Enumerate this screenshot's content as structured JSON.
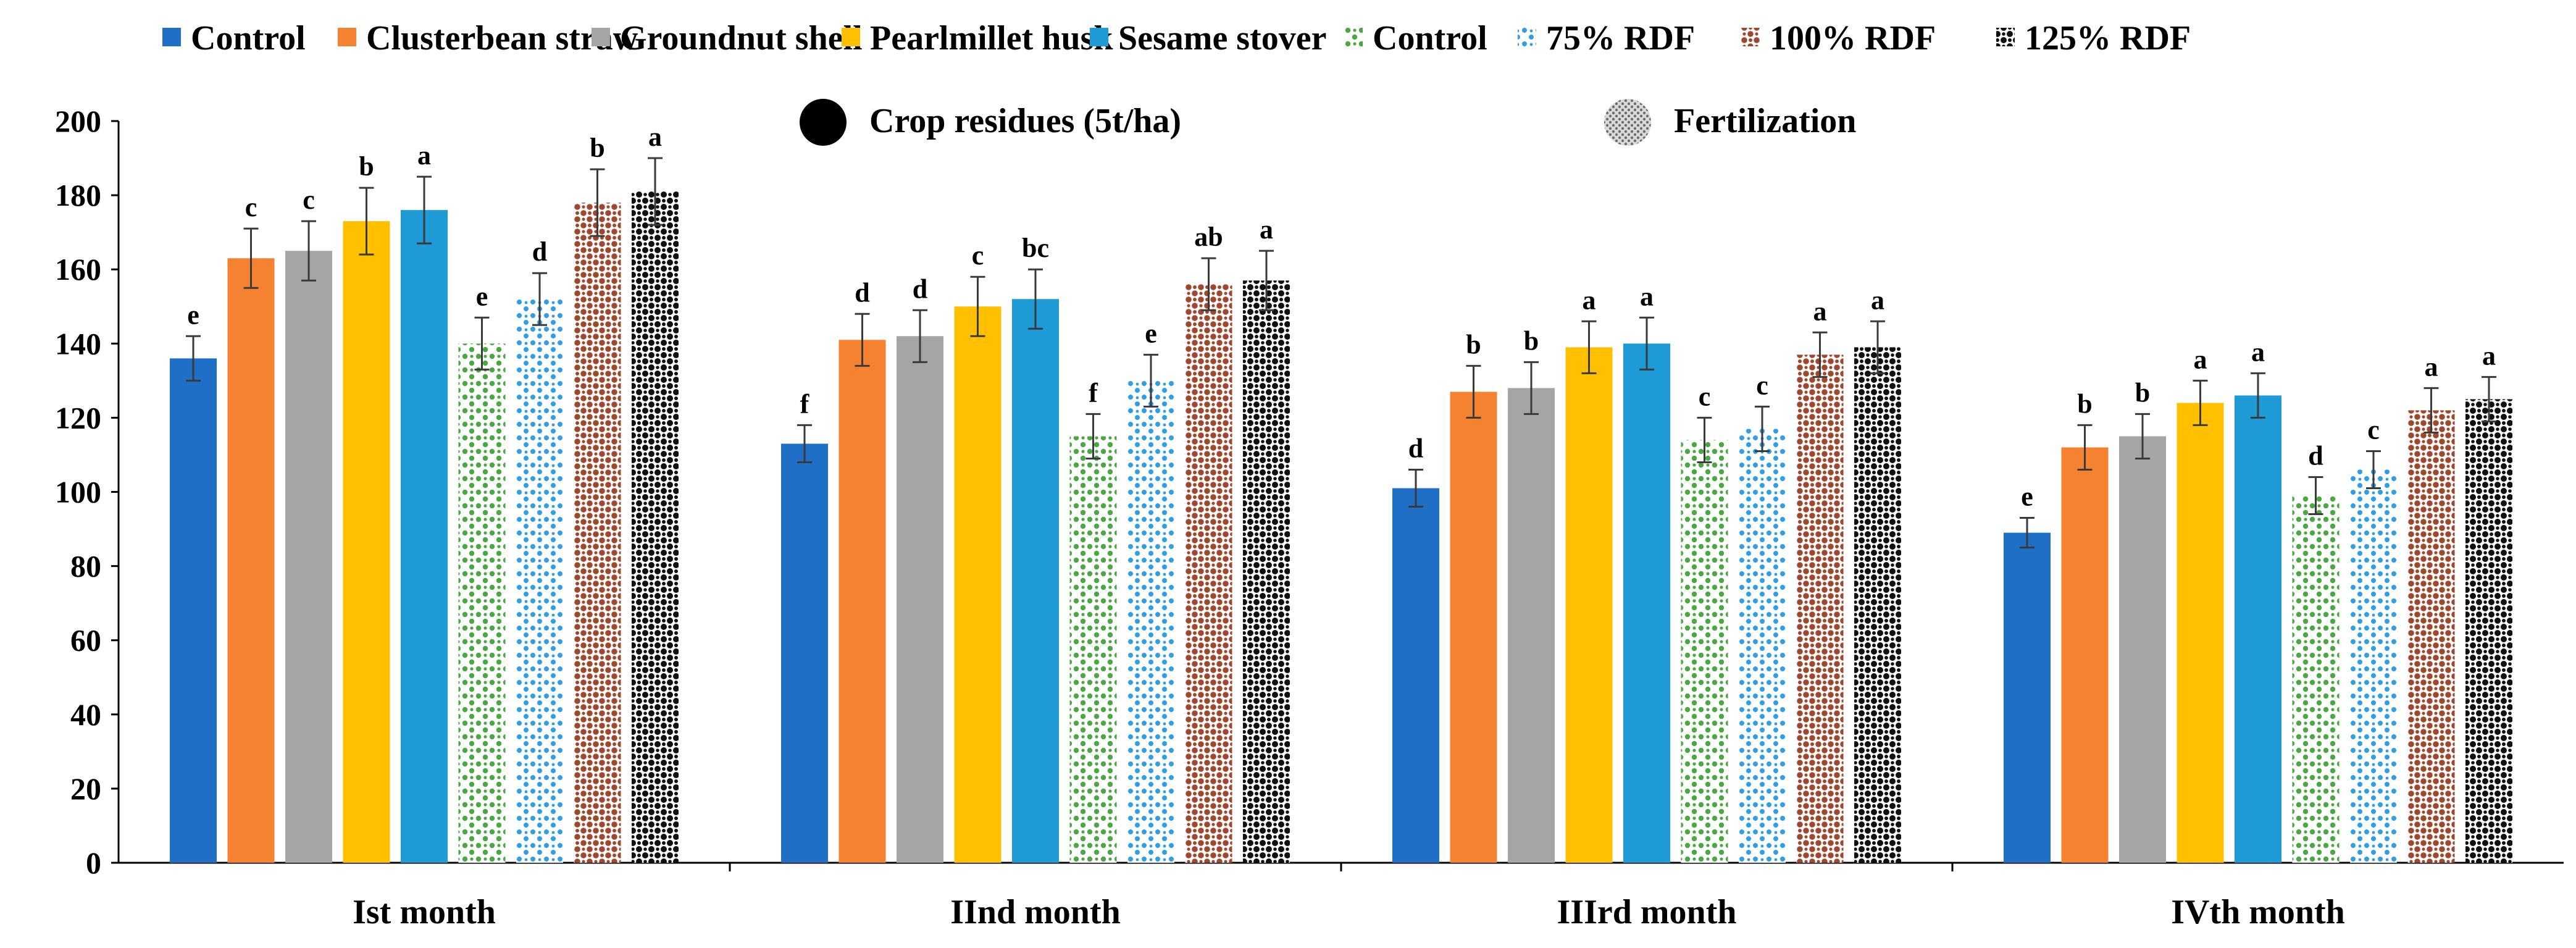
{
  "chart_data": {
    "type": "bar",
    "title": "",
    "xlabel": "",
    "ylabel": "",
    "ylim": [
      0,
      200
    ],
    "yticks": [
      0,
      20,
      40,
      60,
      80,
      100,
      120,
      140,
      160,
      180,
      200
    ],
    "categories": [
      "Ist month",
      "IInd month",
      "IIIrd month",
      "IVth month"
    ],
    "groups": [
      {
        "label": "Crop residues (5t/ha)",
        "symbol": "solid-circle"
      },
      {
        "label": "Fertilization",
        "symbol": "dotted-circle"
      }
    ],
    "series": [
      {
        "name": "Control",
        "group": "Crop residues (5t/ha)",
        "color": "#1f6fc6",
        "pattern": "solid",
        "values": [
          136,
          113,
          101,
          89
        ],
        "errors": [
          6,
          5,
          5,
          4
        ],
        "letters": [
          "e",
          "f",
          "d",
          "e"
        ]
      },
      {
        "name": "Clusterbean straw",
        "group": "Crop residues (5t/ha)",
        "color": "#f58231",
        "pattern": "solid",
        "values": [
          163,
          141,
          127,
          112
        ],
        "errors": [
          8,
          7,
          7,
          6
        ],
        "letters": [
          "c",
          "d",
          "b",
          "b"
        ]
      },
      {
        "name": "Groundnut shell",
        "group": "Crop residues (5t/ha)",
        "color": "#a5a5a5",
        "pattern": "solid",
        "values": [
          165,
          142,
          128,
          115
        ],
        "errors": [
          8,
          7,
          7,
          6
        ],
        "letters": [
          "c",
          "d",
          "b",
          "b"
        ]
      },
      {
        "name": "Pearlmillet husk",
        "group": "Crop residues (5t/ha)",
        "color": "#ffc000",
        "pattern": "solid",
        "values": [
          173,
          150,
          139,
          124
        ],
        "errors": [
          9,
          8,
          7,
          6
        ],
        "letters": [
          "b",
          "c",
          "a",
          "a"
        ]
      },
      {
        "name": "Sesame stover",
        "group": "Crop residues (5t/ha)",
        "color": "#1e9ad6",
        "pattern": "solid",
        "values": [
          176,
          152,
          140,
          126
        ],
        "errors": [
          9,
          8,
          7,
          6
        ],
        "letters": [
          "a",
          "bc",
          "a",
          "a"
        ]
      },
      {
        "name": "Control",
        "group": "Fertilization",
        "color": "#4aa843",
        "pattern": "dots",
        "values": [
          140,
          115,
          114,
          99
        ],
        "errors": [
          7,
          6,
          6,
          5
        ],
        "letters": [
          "e",
          "f",
          "c",
          "d"
        ]
      },
      {
        "name": "75% RDF",
        "group": "Fertilization",
        "color": "#2e9fe6",
        "pattern": "dots",
        "values": [
          152,
          130,
          117,
          106
        ],
        "errors": [
          7,
          7,
          6,
          5
        ],
        "letters": [
          "d",
          "e",
          "c",
          "c"
        ]
      },
      {
        "name": "100% RDF",
        "group": "Fertilization",
        "color": "#a0482d",
        "pattern": "dots",
        "values": [
          178,
          156,
          137,
          122
        ],
        "errors": [
          9,
          7,
          6,
          6
        ],
        "letters": [
          "b",
          "ab",
          "a",
          "a"
        ]
      },
      {
        "name": "125% RDF",
        "group": "Fertilization",
        "color": "#111111",
        "pattern": "dots",
        "values": [
          181,
          157,
          139,
          125
        ],
        "errors": [
          9,
          8,
          7,
          6
        ],
        "letters": [
          "a",
          "a",
          "a",
          "a"
        ]
      }
    ]
  }
}
